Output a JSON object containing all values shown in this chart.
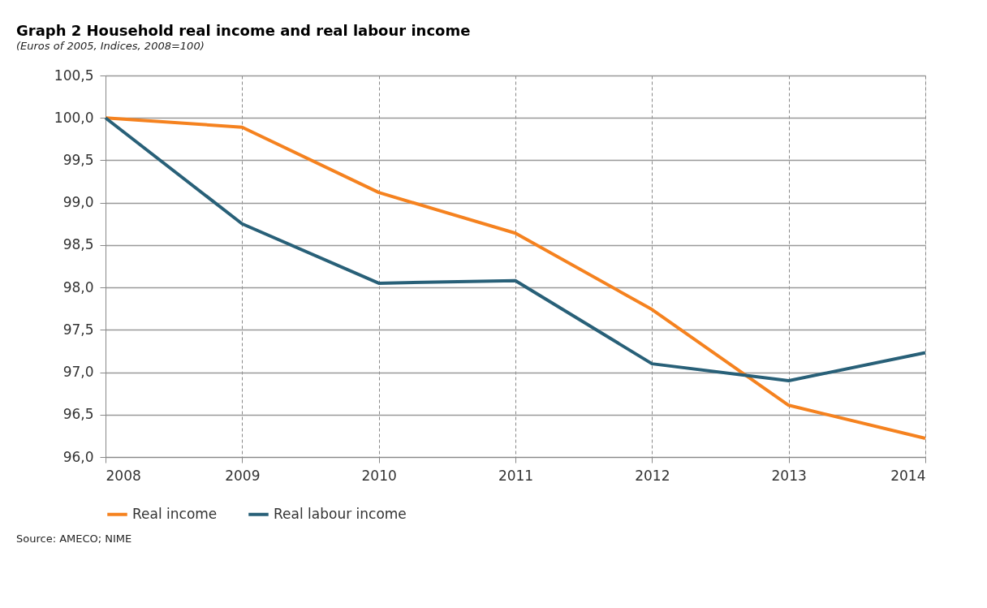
{
  "chart_data": {
    "type": "line",
    "title": "Graph 2    Household real income and real labour income",
    "subtitle": "(Euros of 2005, Indices, 2008=100)",
    "x": [
      2008,
      2009,
      2010,
      2011,
      2012,
      2013,
      2014
    ],
    "series": [
      {
        "name": "Real income",
        "color": "#f5821f",
        "values": [
          100.0,
          99.89,
          99.12,
          98.64,
          97.74,
          96.61,
          96.22
        ]
      },
      {
        "name": "Real labour income",
        "color": "#286078",
        "values": [
          100.0,
          98.75,
          98.05,
          98.08,
          97.1,
          96.9,
          97.23
        ]
      }
    ],
    "xlim": [
      2008,
      2014
    ],
    "xticks": [
      2008,
      2009,
      2010,
      2011,
      2012,
      2013,
      2014
    ],
    "ylim": [
      96.0,
      100.5
    ],
    "yticks": [
      {
        "value": 96.0,
        "label": "96,0"
      },
      {
        "value": 96.5,
        "label": "96,5"
      },
      {
        "value": 97.0,
        "label": "97,0"
      },
      {
        "value": 97.5,
        "label": "97,5"
      },
      {
        "value": 98.0,
        "label": "98,0"
      },
      {
        "value": 98.5,
        "label": "98,5"
      },
      {
        "value": 99.0,
        "label": "99,0"
      },
      {
        "value": 99.5,
        "label": "99,5"
      },
      {
        "value": 100.0,
        "label": "100,0"
      },
      {
        "value": 100.5,
        "label": "100,5"
      }
    ],
    "grid": true,
    "legend": "bottom",
    "marker": "none",
    "line_style": "solid",
    "annotations": [
      "Source: AMECO; NIME"
    ]
  }
}
